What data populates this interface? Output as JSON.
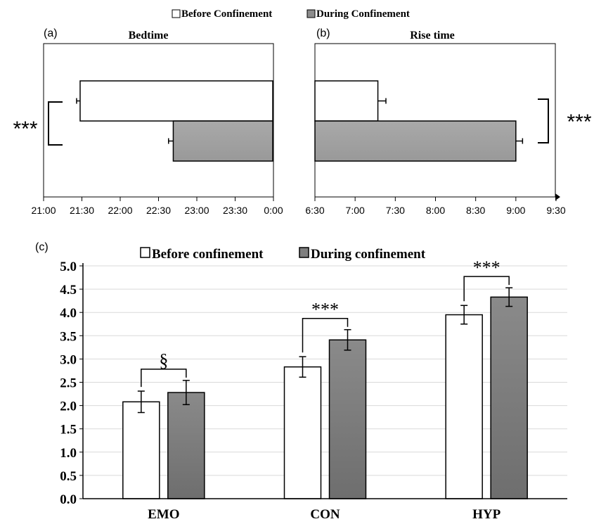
{
  "colors": {
    "before": "#ffffff",
    "during_top": "#a6a6a6",
    "during_bottom": "#7f7f7f",
    "stroke": "#000000",
    "grid": "#d9d9d9"
  },
  "legend_top": {
    "before": "Before Confinement",
    "during": "During Confinement"
  },
  "legend_bottom": {
    "before": "Before confinement",
    "during": "During confinement"
  },
  "chart_data": [
    {
      "panel_label": "(a)",
      "title": "Bedtime",
      "type": "bar",
      "orientation": "horizontal",
      "x_ticks": [
        "21:00",
        "21:30",
        "22:00",
        "22:30",
        "23:00",
        "23:30",
        "0:00"
      ],
      "xlim_minutes": [
        1260,
        1455
      ],
      "series": [
        {
          "name": "Before Confinement",
          "value_minutes": 1291,
          "error_minutes": 3
        },
        {
          "name": "During Confinement",
          "value_minutes": 1370,
          "error_minutes": 4
        }
      ],
      "annotation": "***"
    },
    {
      "panel_label": "(b)",
      "title": "Rise time",
      "type": "bar",
      "orientation": "horizontal",
      "x_ticks": [
        "6:30",
        "7:00",
        "7:30",
        "8:00",
        "8:30",
        "9:00",
        "9:30"
      ],
      "xlim_minutes": [
        390,
        570
      ],
      "series": [
        {
          "name": "Before Confinement",
          "value_minutes": 437,
          "error_minutes": 6
        },
        {
          "name": "During Confinement",
          "value_minutes": 540,
          "error_minutes": 5
        }
      ],
      "annotation": "***"
    },
    {
      "panel_label": "(c)",
      "type": "bar",
      "categories": [
        "EMO",
        "CON",
        "HYP"
      ],
      "ylim": [
        0,
        5
      ],
      "y_ticks": [
        "0.0",
        "0.5",
        "1.0",
        "1.5",
        "2.0",
        "2.5",
        "3.0",
        "3.5",
        "4.0",
        "4.5",
        "5.0"
      ],
      "grid": true,
      "series": [
        {
          "name": "Before confinement",
          "values": [
            2.08,
            2.83,
            3.95
          ],
          "errors": [
            0.23,
            0.22,
            0.2
          ]
        },
        {
          "name": "During confinement",
          "values": [
            2.28,
            3.41,
            4.33
          ],
          "errors": [
            0.26,
            0.22,
            0.2
          ]
        }
      ],
      "annotations": [
        "§",
        "***",
        "***"
      ]
    }
  ]
}
